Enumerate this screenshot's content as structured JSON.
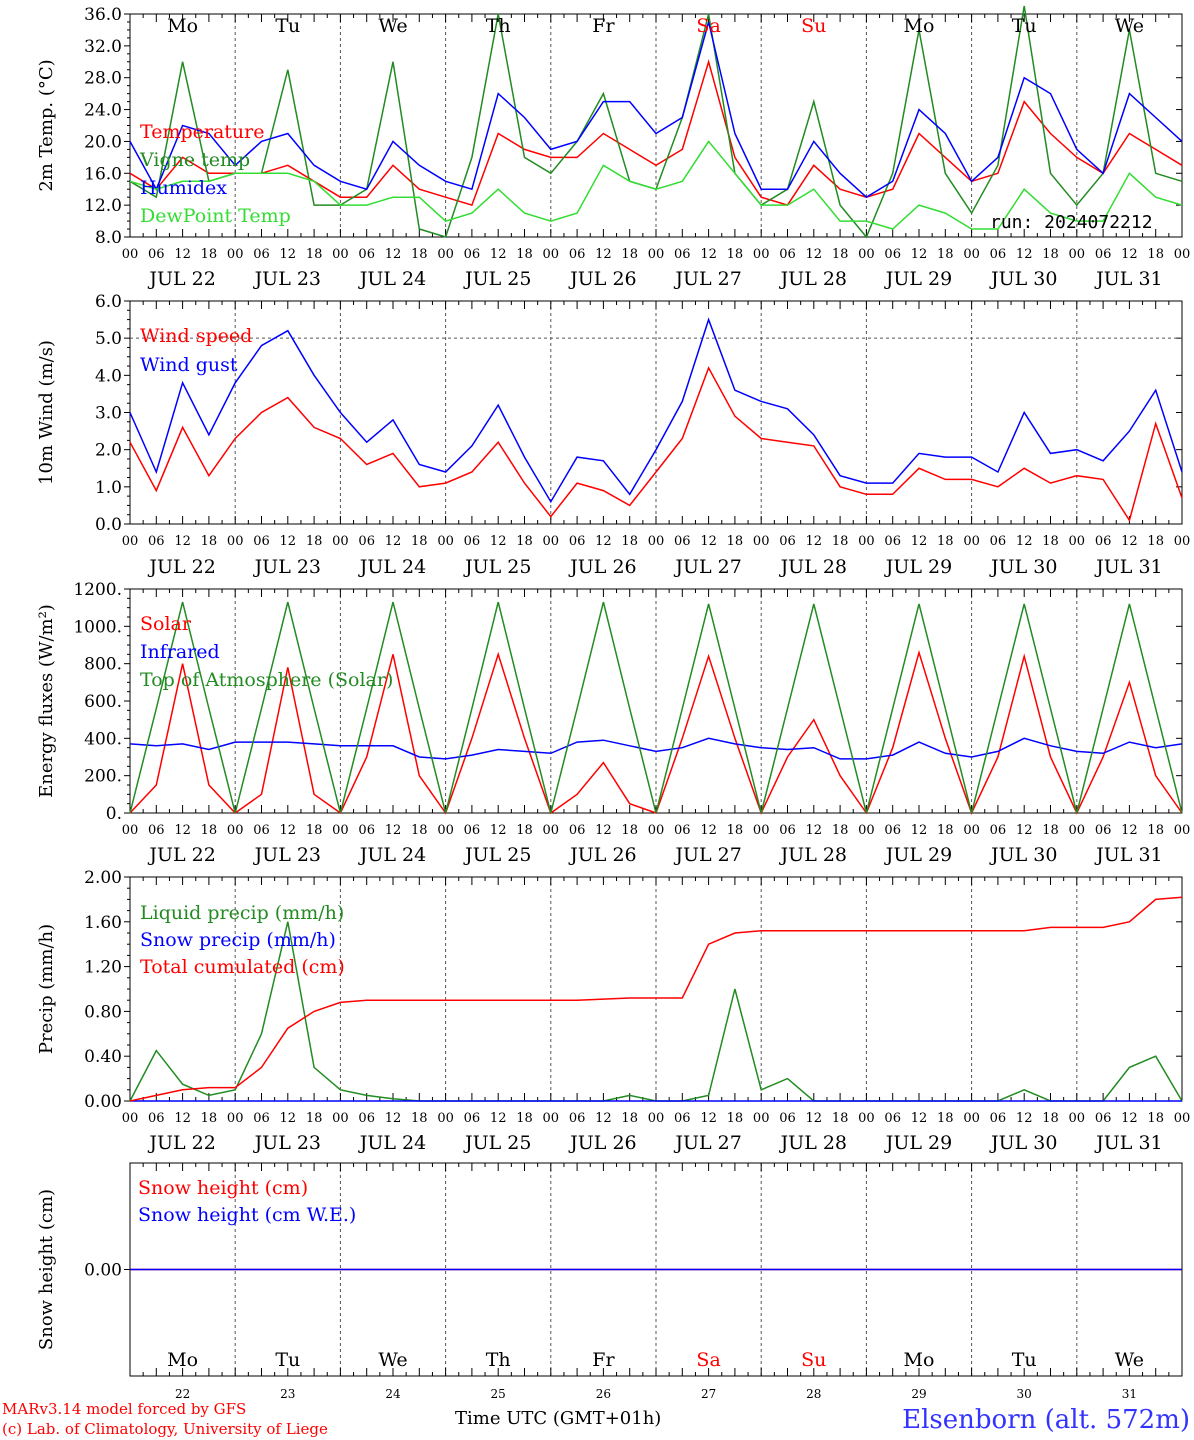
{
  "colors": {
    "temperature": "#ff0000",
    "vigne": "#228b22",
    "humidex": "#0000ff",
    "dewpoint": "#33dd33",
    "wind_speed": "#ff0000",
    "wind_gust": "#0000ff",
    "solar": "#ff0000",
    "infrared": "#0000ff",
    "toa": "#228b22",
    "liquid": "#228b22",
    "snow_precip": "#0000ff",
    "total_cum": "#ff0000",
    "snow_h": "#ff0000",
    "snow_we": "#0000ff",
    "weekend": "#ff0000",
    "weekday": "#000000",
    "station": "#3333ff",
    "credit": "#ff0000"
  },
  "run_label": "run: 2024072212",
  "footer": {
    "credit_line1": "MARv3.14 model forced by GFS",
    "credit_line2": "(c) Lab. of Climatology, University of Liege",
    "xlabel": "Time UTC (GMT+01h)",
    "station": "Elsenborn (alt. 572m)"
  },
  "days": [
    {
      "abbr": "Mo",
      "date": "JUL 22",
      "num": "22",
      "weekend": false
    },
    {
      "abbr": "Tu",
      "date": "JUL 23",
      "num": "23",
      "weekend": false
    },
    {
      "abbr": "We",
      "date": "JUL 24",
      "num": "24",
      "weekend": false
    },
    {
      "abbr": "Th",
      "date": "JUL 25",
      "num": "25",
      "weekend": false
    },
    {
      "abbr": "Fr",
      "date": "JUL 26",
      "num": "26",
      "weekend": false
    },
    {
      "abbr": "Sa",
      "date": "JUL 27",
      "num": "27",
      "weekend": true
    },
    {
      "abbr": "Su",
      "date": "JUL 28",
      "num": "28",
      "weekend": true
    },
    {
      "abbr": "Mo",
      "date": "JUL 29",
      "num": "29",
      "weekend": false
    },
    {
      "abbr": "Tu",
      "date": "JUL 30",
      "num": "30",
      "weekend": false
    },
    {
      "abbr": "We",
      "date": "JUL 31",
      "num": "31",
      "weekend": false
    }
  ],
  "hour_ticks": [
    "00",
    "06",
    "12",
    "18"
  ],
  "final_tick": "00",
  "chart_data": [
    {
      "type": "line",
      "ylabel": "2m Temp. (°C)",
      "ylim": [
        8,
        36
      ],
      "yticks": [
        "8.0",
        "12.0",
        "16.0",
        "20.0",
        "24.0",
        "28.0",
        "32.0",
        "36.0"
      ],
      "x_hours": [
        0,
        6,
        12,
        18,
        24,
        30,
        36,
        42,
        48,
        54,
        60,
        66,
        72,
        78,
        84,
        90,
        96,
        102,
        108,
        114,
        120,
        126,
        132,
        138,
        144,
        150,
        156,
        162,
        168,
        174,
        180,
        186,
        192,
        198,
        204,
        210,
        216,
        222,
        228,
        234,
        240
      ],
      "series": [
        {
          "name": "Temperature",
          "color_key": "temperature",
          "values": [
            16,
            14,
            18,
            16,
            16,
            16,
            17,
            15,
            13,
            13,
            17,
            14,
            13,
            12,
            21,
            19,
            18,
            18,
            21,
            19,
            17,
            19,
            30,
            18,
            13,
            12,
            17,
            14,
            13,
            14,
            21,
            18,
            15,
            16,
            25,
            21,
            18,
            16,
            21,
            19,
            17
          ]
        },
        {
          "name": "Vigne temp",
          "color_key": "vigne",
          "values": [
            15,
            13,
            30,
            15,
            16,
            16,
            29,
            12,
            12,
            14,
            30,
            9,
            8,
            18,
            36,
            18,
            16,
            20,
            26,
            15,
            14,
            23,
            36,
            16,
            12,
            14,
            25,
            12,
            8,
            16,
            34,
            16,
            11,
            17,
            37,
            16,
            12,
            16,
            34,
            16,
            15
          ]
        },
        {
          "name": "Humidex",
          "color_key": "humidex",
          "values": [
            20,
            14,
            22,
            21,
            17,
            20,
            21,
            17,
            15,
            14,
            20,
            17,
            15,
            14,
            26,
            23,
            19,
            20,
            25,
            25,
            21,
            23,
            35,
            21,
            14,
            14,
            20,
            16,
            13,
            15,
            24,
            21,
            15,
            18,
            28,
            26,
            19,
            16,
            26,
            23,
            20
          ]
        },
        {
          "name": "DewPoint Temp",
          "color_key": "dewpoint",
          "values": [
            15,
            14,
            15,
            15,
            16,
            16,
            16,
            15,
            12,
            12,
            13,
            13,
            10,
            11,
            14,
            11,
            10,
            11,
            17,
            15,
            14,
            15,
            20,
            16,
            12,
            12,
            14,
            10,
            10,
            9,
            12,
            11,
            9,
            9,
            14,
            11,
            10,
            10,
            16,
            13,
            12
          ]
        }
      ]
    },
    {
      "type": "line",
      "ylabel": "10m Wind (m/s)",
      "ylim": [
        0,
        6
      ],
      "yticks": [
        "0.0",
        "1.0",
        "2.0",
        "3.0",
        "4.0",
        "5.0",
        "6.0"
      ],
      "x_hours": [
        0,
        6,
        12,
        18,
        24,
        30,
        36,
        42,
        48,
        54,
        60,
        66,
        72,
        78,
        84,
        90,
        96,
        102,
        108,
        114,
        120,
        126,
        132,
        138,
        144,
        150,
        156,
        162,
        168,
        174,
        180,
        186,
        192,
        198,
        204,
        210,
        216,
        222,
        228,
        234,
        240
      ],
      "series": [
        {
          "name": "Wind speed",
          "color_key": "wind_speed",
          "values": [
            2.2,
            0.9,
            2.6,
            1.3,
            2.3,
            3.0,
            3.4,
            2.6,
            2.3,
            1.6,
            1.9,
            1.0,
            1.1,
            1.4,
            2.2,
            1.1,
            0.2,
            1.1,
            0.9,
            0.5,
            1.4,
            2.3,
            4.2,
            2.9,
            2.3,
            2.2,
            2.1,
            1.0,
            0.8,
            0.8,
            1.5,
            1.2,
            1.2,
            1.0,
            1.5,
            1.1,
            1.3,
            1.2,
            0.1,
            2.7,
            0.7
          ]
        },
        {
          "name": "Wind gust",
          "color_key": "wind_gust",
          "values": [
            3.0,
            1.4,
            3.8,
            2.4,
            3.8,
            4.8,
            5.2,
            4.0,
            3.0,
            2.2,
            2.8,
            1.6,
            1.4,
            2.1,
            3.2,
            1.8,
            0.6,
            1.8,
            1.7,
            0.8,
            2.0,
            3.3,
            5.5,
            3.6,
            3.3,
            3.1,
            2.4,
            1.3,
            1.1,
            1.1,
            1.9,
            1.8,
            1.8,
            1.4,
            3.0,
            1.9,
            2.0,
            1.7,
            2.5,
            3.6,
            1.4
          ]
        }
      ]
    },
    {
      "type": "line",
      "ylabel": "Energy fluxes (W/m²)",
      "ylim": [
        0,
        1200
      ],
      "yticks": [
        "0.",
        "200.",
        "400.",
        "600.",
        "800.",
        "1000.",
        "1200."
      ],
      "x_hours": [
        0,
        6,
        12,
        18,
        24,
        30,
        36,
        42,
        48,
        54,
        60,
        66,
        72,
        78,
        84,
        90,
        96,
        102,
        108,
        114,
        120,
        126,
        132,
        138,
        144,
        150,
        156,
        162,
        168,
        174,
        180,
        186,
        192,
        198,
        204,
        210,
        216,
        222,
        228,
        234,
        240
      ],
      "series": [
        {
          "name": "Solar",
          "color_key": "solar",
          "values": [
            0,
            150,
            800,
            150,
            0,
            100,
            780,
            100,
            0,
            300,
            850,
            200,
            0,
            400,
            850,
            400,
            0,
            100,
            270,
            50,
            0,
            400,
            840,
            400,
            0,
            300,
            500,
            200,
            0,
            350,
            860,
            400,
            0,
            300,
            840,
            300,
            0,
            300,
            700,
            200,
            0
          ]
        },
        {
          "name": "Infrared",
          "color_key": "infrared",
          "values": [
            370,
            360,
            370,
            340,
            380,
            380,
            380,
            370,
            360,
            360,
            360,
            300,
            290,
            310,
            340,
            330,
            320,
            380,
            390,
            360,
            330,
            350,
            400,
            370,
            350,
            340,
            350,
            290,
            290,
            310,
            380,
            320,
            300,
            330,
            400,
            360,
            330,
            320,
            380,
            350,
            370
          ]
        },
        {
          "name": "Top of Atmosphere (Solar)",
          "color_key": "toa",
          "values": [
            0,
            560,
            1130,
            560,
            0,
            560,
            1130,
            560,
            0,
            560,
            1130,
            560,
            0,
            560,
            1130,
            560,
            0,
            560,
            1130,
            560,
            0,
            560,
            1120,
            560,
            0,
            560,
            1120,
            560,
            0,
            560,
            1120,
            560,
            0,
            560,
            1120,
            560,
            0,
            560,
            1120,
            560,
            0
          ]
        }
      ]
    },
    {
      "type": "line",
      "ylabel": "Precip (mm/h)",
      "ylim": [
        0,
        2
      ],
      "yticks": [
        "0.00",
        "0.40",
        "0.80",
        "1.20",
        "1.60",
        "2.00"
      ],
      "x_hours": [
        0,
        6,
        12,
        18,
        24,
        30,
        36,
        42,
        48,
        54,
        60,
        66,
        72,
        78,
        84,
        90,
        96,
        102,
        108,
        114,
        120,
        126,
        132,
        138,
        144,
        150,
        156,
        162,
        168,
        174,
        180,
        186,
        192,
        198,
        204,
        210,
        216,
        222,
        228,
        234,
        240
      ],
      "series": [
        {
          "name": "Liquid precip (mm/h)",
          "color_key": "liquid",
          "values": [
            0,
            0.45,
            0.15,
            0.05,
            0.1,
            0.6,
            1.6,
            0.3,
            0.1,
            0.05,
            0.02,
            0,
            0,
            0,
            0,
            0,
            0,
            0,
            0,
            0.05,
            0,
            0,
            0.05,
            1.0,
            0.1,
            0.2,
            0,
            0,
            0,
            0,
            0,
            0,
            0,
            0,
            0.1,
            0,
            0,
            0,
            0.3,
            0.4,
            0
          ]
        },
        {
          "name": "Snow precip (mm/h)",
          "color_key": "snow_precip",
          "values": [
            0,
            0,
            0,
            0,
            0,
            0,
            0,
            0,
            0,
            0,
            0,
            0,
            0,
            0,
            0,
            0,
            0,
            0,
            0,
            0,
            0,
            0,
            0,
            0,
            0,
            0,
            0,
            0,
            0,
            0,
            0,
            0,
            0,
            0,
            0,
            0,
            0,
            0,
            0,
            0,
            0
          ]
        },
        {
          "name": "Total cumulated (cm)",
          "color_key": "total_cum",
          "values": [
            0,
            0.05,
            0.1,
            0.12,
            0.12,
            0.3,
            0.65,
            0.8,
            0.88,
            0.9,
            0.9,
            0.9,
            0.9,
            0.9,
            0.9,
            0.9,
            0.9,
            0.9,
            0.91,
            0.92,
            0.92,
            0.92,
            1.4,
            1.5,
            1.52,
            1.52,
            1.52,
            1.52,
            1.52,
            1.52,
            1.52,
            1.52,
            1.52,
            1.52,
            1.52,
            1.55,
            1.55,
            1.55,
            1.6,
            1.8,
            1.82
          ]
        }
      ]
    },
    {
      "type": "line",
      "ylabel": "Snow height (cm)",
      "ylim": [
        -1,
        1
      ],
      "yticks": [
        "0.00"
      ],
      "x_hours": [
        0,
        240
      ],
      "series": [
        {
          "name": "Snow height (cm)",
          "color_key": "snow_h",
          "values": [
            0,
            0
          ]
        },
        {
          "name": "Snow height (cm W.E.)",
          "color_key": "snow_we",
          "values": [
            0,
            0
          ]
        }
      ]
    }
  ]
}
